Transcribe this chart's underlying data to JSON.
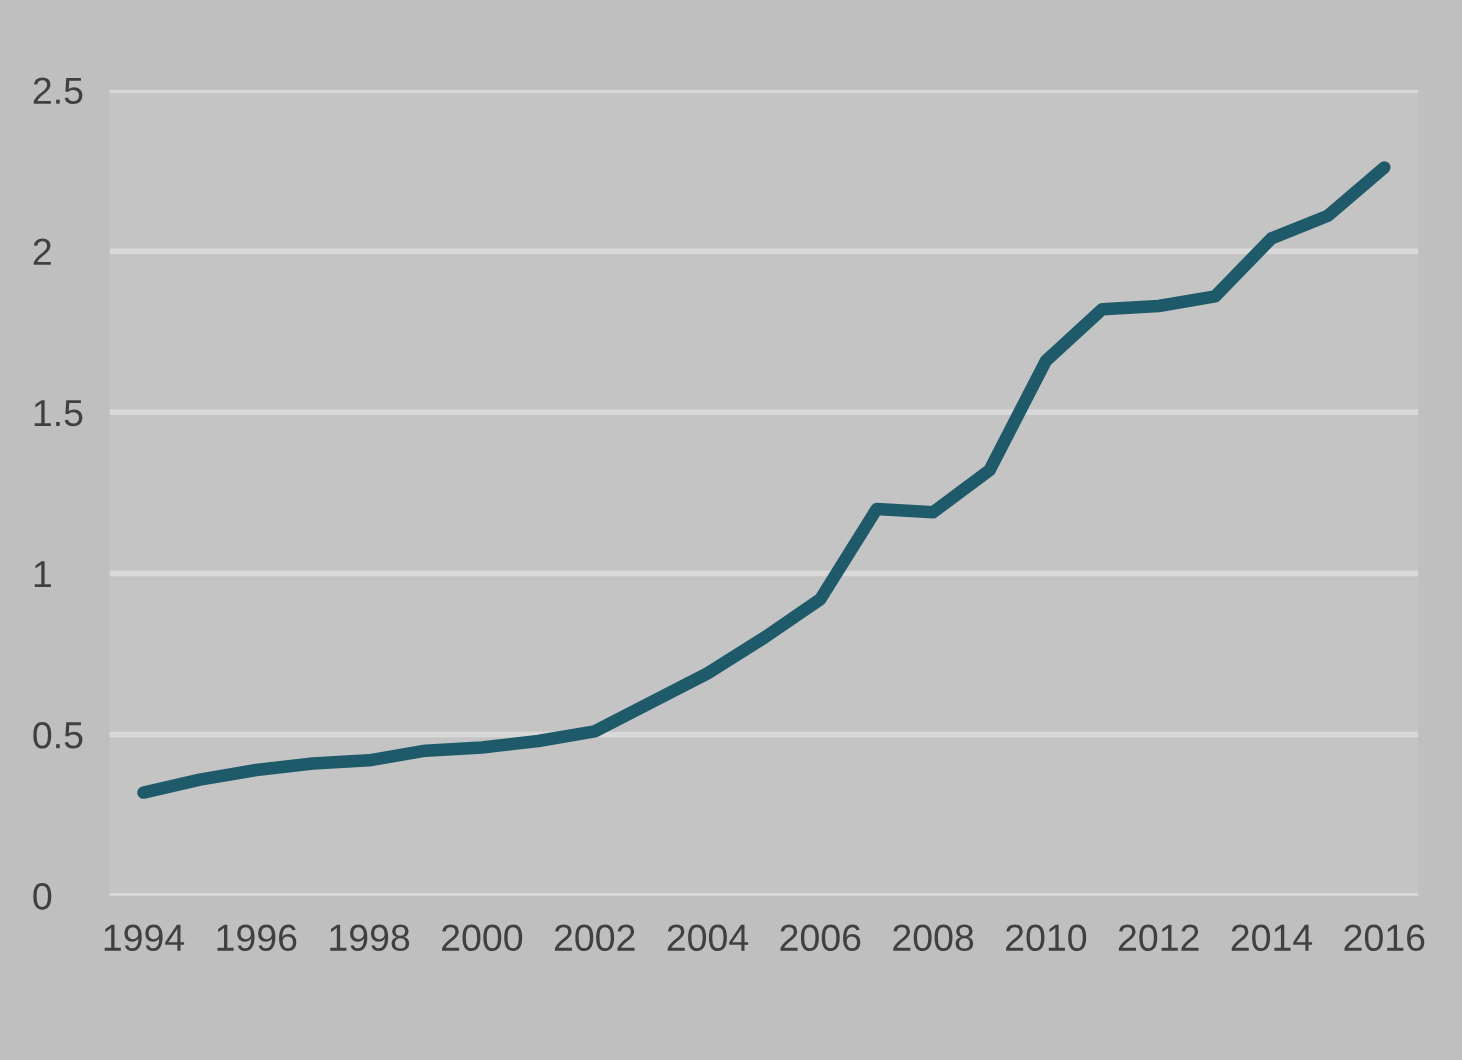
{
  "chart_data": {
    "type": "line",
    "categories": [
      "1994",
      null,
      "1996",
      null,
      "1998",
      null,
      "2000",
      null,
      "2002",
      null,
      "2004",
      null,
      "2006",
      null,
      "2008",
      null,
      "2010",
      null,
      "2012",
      null,
      "2014",
      null,
      "2016"
    ],
    "series": [
      {
        "color": "#1f5a6a",
        "values": [
          0.32,
          0.36,
          0.39,
          0.41,
          0.42,
          0.45,
          0.46,
          0.48,
          0.51,
          0.6,
          0.69,
          0.8,
          0.92,
          1.2,
          1.19,
          1.32,
          1.66,
          1.82,
          1.83,
          1.86,
          2.04,
          2.11,
          2.26
        ]
      }
    ],
    "ylim": [
      0,
      2.5
    ],
    "yticks": [
      0,
      0.5,
      1,
      1.5,
      2,
      2.5
    ],
    "grid": "y",
    "marker": "none",
    "line_style": "solid"
  }
}
